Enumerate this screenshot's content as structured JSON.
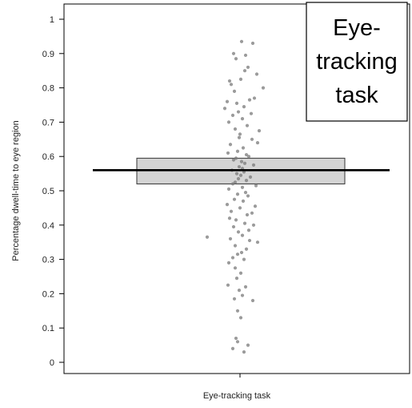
{
  "chart_data": {
    "type": "scatter",
    "subtype": "jittered strip plot with box",
    "title": "",
    "xlabel": "Eye-tracking task",
    "ylabel": "Percentage dwell-time to eye region",
    "ylim": [
      0,
      1
    ],
    "yticks": [
      "0",
      "0.1",
      "0.2",
      "0.3",
      "0.4",
      "0.5",
      "0.6",
      "0.7",
      "0.8",
      "0.9",
      "1"
    ],
    "grid": false,
    "legend": "none",
    "callout": {
      "lines": [
        "Eye-",
        "tracking",
        "task"
      ],
      "placement": "top-right"
    },
    "box": {
      "q1": 0.52,
      "q3": 0.595,
      "mean": 0.56,
      "fill": "#d4d4d4",
      "mean_line_color": "#000000"
    },
    "point_color": "#7a7a7a",
    "points": [
      {
        "x": 0.02,
        "y": 0.935
      },
      {
        "x": 0.16,
        "y": 0.93
      },
      {
        "x": -0.08,
        "y": 0.9
      },
      {
        "x": 0.07,
        "y": 0.895
      },
      {
        "x": -0.05,
        "y": 0.885
      },
      {
        "x": 0.1,
        "y": 0.86
      },
      {
        "x": 0.06,
        "y": 0.85
      },
      {
        "x": 0.21,
        "y": 0.84
      },
      {
        "x": 0.01,
        "y": 0.825
      },
      {
        "x": -0.13,
        "y": 0.82
      },
      {
        "x": -0.11,
        "y": 0.81
      },
      {
        "x": 0.29,
        "y": 0.8
      },
      {
        "x": -0.07,
        "y": 0.79
      },
      {
        "x": 0.18,
        "y": 0.77
      },
      {
        "x": 0.12,
        "y": 0.765
      },
      {
        "x": -0.16,
        "y": 0.76
      },
      {
        "x": -0.04,
        "y": 0.755
      },
      {
        "x": 0.05,
        "y": 0.745
      },
      {
        "x": -0.19,
        "y": 0.74
      },
      {
        "x": -0.02,
        "y": 0.73
      },
      {
        "x": 0.14,
        "y": 0.725
      },
      {
        "x": -0.09,
        "y": 0.72
      },
      {
        "x": 0.03,
        "y": 0.71
      },
      {
        "x": -0.14,
        "y": 0.7
      },
      {
        "x": 0.09,
        "y": 0.69
      },
      {
        "x": -0.06,
        "y": 0.68
      },
      {
        "x": 0.24,
        "y": 0.675
      },
      {
        "x": 0.0,
        "y": 0.665
      },
      {
        "x": -0.01,
        "y": 0.655
      },
      {
        "x": 0.15,
        "y": 0.65
      },
      {
        "x": 0.22,
        "y": 0.64
      },
      {
        "x": -0.12,
        "y": 0.635
      },
      {
        "x": 0.04,
        "y": 0.625
      },
      {
        "x": -0.03,
        "y": 0.615
      },
      {
        "x": -0.15,
        "y": 0.61
      },
      {
        "x": 0.08,
        "y": 0.605
      },
      {
        "x": 0.11,
        "y": 0.6
      },
      {
        "x": -0.05,
        "y": 0.595
      },
      {
        "x": -0.08,
        "y": 0.59
      },
      {
        "x": 0.02,
        "y": 0.585
      },
      {
        "x": 0.06,
        "y": 0.58
      },
      {
        "x": 0.17,
        "y": 0.575
      },
      {
        "x": -0.01,
        "y": 0.57
      },
      {
        "x": 0.03,
        "y": 0.565
      },
      {
        "x": -0.1,
        "y": 0.56
      },
      {
        "x": 0.05,
        "y": 0.555
      },
      {
        "x": -0.04,
        "y": 0.55
      },
      {
        "x": 0.01,
        "y": 0.545
      },
      {
        "x": 0.13,
        "y": 0.54
      },
      {
        "x": -0.02,
        "y": 0.535
      },
      {
        "x": 0.08,
        "y": 0.53
      },
      {
        "x": -0.06,
        "y": 0.525
      },
      {
        "x": -0.09,
        "y": 0.52
      },
      {
        "x": 0.2,
        "y": 0.515
      },
      {
        "x": 0.03,
        "y": 0.51
      },
      {
        "x": -0.14,
        "y": 0.505
      },
      {
        "x": 0.07,
        "y": 0.495
      },
      {
        "x": -0.03,
        "y": 0.49
      },
      {
        "x": 0.1,
        "y": 0.485
      },
      {
        "x": -0.07,
        "y": 0.475
      },
      {
        "x": 0.04,
        "y": 0.47
      },
      {
        "x": -0.16,
        "y": 0.46
      },
      {
        "x": 0.19,
        "y": 0.455
      },
      {
        "x": 0.0,
        "y": 0.45
      },
      {
        "x": -0.11,
        "y": 0.44
      },
      {
        "x": 0.15,
        "y": 0.435
      },
      {
        "x": 0.09,
        "y": 0.43
      },
      {
        "x": -0.13,
        "y": 0.42
      },
      {
        "x": -0.05,
        "y": 0.415
      },
      {
        "x": 0.06,
        "y": 0.405
      },
      {
        "x": 0.17,
        "y": 0.4
      },
      {
        "x": -0.08,
        "y": 0.395
      },
      {
        "x": 0.11,
        "y": 0.385
      },
      {
        "x": -0.02,
        "y": 0.38
      },
      {
        "x": 0.03,
        "y": 0.37
      },
      {
        "x": -0.41,
        "y": 0.365
      },
      {
        "x": -0.12,
        "y": 0.36
      },
      {
        "x": 0.12,
        "y": 0.355
      },
      {
        "x": 0.22,
        "y": 0.35
      },
      {
        "x": -0.06,
        "y": 0.34
      },
      {
        "x": 0.08,
        "y": 0.33
      },
      {
        "x": 0.02,
        "y": 0.32
      },
      {
        "x": -0.03,
        "y": 0.315
      },
      {
        "x": -0.09,
        "y": 0.305
      },
      {
        "x": 0.05,
        "y": 0.3
      },
      {
        "x": -0.14,
        "y": 0.29
      },
      {
        "x": -0.06,
        "y": 0.275
      },
      {
        "x": 0.01,
        "y": 0.26
      },
      {
        "x": -0.04,
        "y": 0.245
      },
      {
        "x": -0.15,
        "y": 0.225
      },
      {
        "x": 0.07,
        "y": 0.22
      },
      {
        "x": -0.01,
        "y": 0.21
      },
      {
        "x": 0.03,
        "y": 0.195
      },
      {
        "x": -0.07,
        "y": 0.185
      },
      {
        "x": 0.16,
        "y": 0.18
      },
      {
        "x": -0.03,
        "y": 0.15
      },
      {
        "x": 0.01,
        "y": 0.13
      },
      {
        "x": -0.05,
        "y": 0.07
      },
      {
        "x": -0.03,
        "y": 0.06
      },
      {
        "x": 0.1,
        "y": 0.05
      },
      {
        "x": -0.09,
        "y": 0.04
      },
      {
        "x": 0.05,
        "y": 0.03
      }
    ]
  }
}
